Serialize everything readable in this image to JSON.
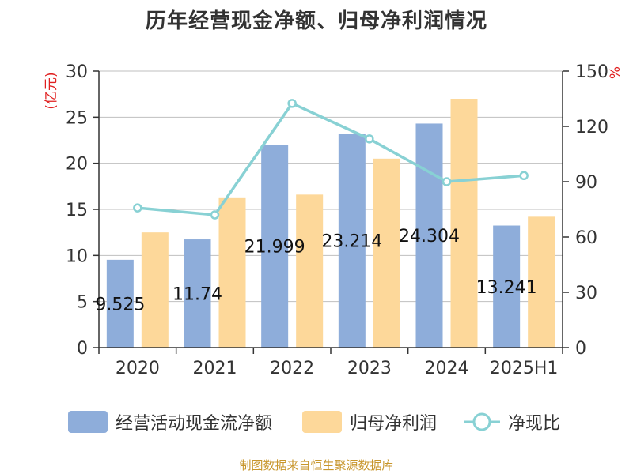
{
  "title": "历年经营现金净额、归母净利润情况",
  "source": "制图数据来自恒生聚源数据库",
  "colors": {
    "cash_flow": "#8eadda",
    "net_profit": "#fdd89a",
    "ratio": "#88d1d4",
    "left_axis_label": "#e02020",
    "right_axis_label": "#e02020",
    "grid": "#bfbfbf",
    "axis": "#333333"
  },
  "chart_data": {
    "type": "bar",
    "categories": [
      "2020",
      "2021",
      "2022",
      "2023",
      "2024",
      "2025H1"
    ],
    "y_left": {
      "label": "(亿元)",
      "ticks": [
        "0",
        "5",
        "10",
        "15",
        "20",
        "25",
        "30"
      ],
      "range": [
        0,
        30
      ]
    },
    "y_right": {
      "label": "%",
      "ticks": [
        "0",
        "30",
        "60",
        "90",
        "120",
        "150"
      ],
      "range": [
        0,
        150
      ]
    },
    "grid": true,
    "legend_position": "bottom",
    "series": [
      {
        "name": "经营活动现金流净额",
        "kind": "bar",
        "axis": "left",
        "values": [
          9.525,
          11.74,
          21.999,
          23.214,
          24.304,
          13.241
        ],
        "data_labels": [
          "9.525",
          "11.74",
          "21.999",
          "23.214",
          "24.304",
          "13.241"
        ]
      },
      {
        "name": "归母净利润",
        "kind": "bar",
        "axis": "left",
        "values": [
          12.5,
          16.3,
          16.6,
          20.5,
          27.0,
          14.2
        ]
      },
      {
        "name": "净现比",
        "kind": "line",
        "axis": "right",
        "values": [
          75.8,
          72.0,
          132.5,
          113.2,
          90.0,
          93.3
        ]
      }
    ]
  },
  "legend": [
    {
      "label": "经营活动现金流净额",
      "icon": "bar-swatch"
    },
    {
      "label": "归母净利润",
      "icon": "bar-swatch"
    },
    {
      "label": "净现比",
      "icon": "line-circle"
    }
  ]
}
